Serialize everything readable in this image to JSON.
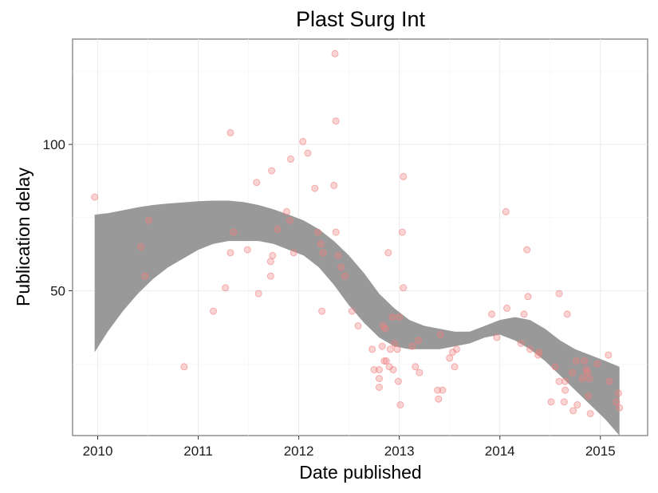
{
  "chart_data": {
    "type": "scatter",
    "title": "Plast Surg Int",
    "xlabel": "Date published",
    "ylabel": "Publication delay",
    "xlim": [
      2009.75,
      2015.47
    ],
    "ylim": [
      0.5,
      136
    ],
    "x_ticks": [
      2010,
      2011,
      2012,
      2013,
      2014,
      2015
    ],
    "y_ticks": [
      50,
      100
    ],
    "grid": true,
    "point_color": "#f08080",
    "band_color": "#999999",
    "series": [
      {
        "type": "points",
        "points": [
          [
            2009.97,
            82
          ],
          [
            2010.43,
            65
          ],
          [
            2010.47,
            55
          ],
          [
            2010.51,
            74
          ],
          [
            2010.86,
            24
          ],
          [
            2011.15,
            43
          ],
          [
            2011.27,
            51
          ],
          [
            2011.32,
            104
          ],
          [
            2011.32,
            63
          ],
          [
            2011.35,
            70
          ],
          [
            2011.49,
            64
          ],
          [
            2011.58,
            87
          ],
          [
            2011.6,
            49
          ],
          [
            2011.72,
            60
          ],
          [
            2011.72,
            55
          ],
          [
            2011.73,
            91
          ],
          [
            2011.74,
            62
          ],
          [
            2011.79,
            71
          ],
          [
            2011.88,
            77
          ],
          [
            2011.91,
            74
          ],
          [
            2011.92,
            95
          ],
          [
            2011.95,
            63
          ],
          [
            2012.04,
            101
          ],
          [
            2012.09,
            97
          ],
          [
            2012.16,
            85
          ],
          [
            2012.19,
            70
          ],
          [
            2012.22,
            66
          ],
          [
            2012.23,
            43
          ],
          [
            2012.24,
            63
          ],
          [
            2012.35,
            86
          ],
          [
            2012.36,
            131
          ],
          [
            2012.37,
            70
          ],
          [
            2012.37,
            108
          ],
          [
            2012.39,
            62
          ],
          [
            2012.42,
            58
          ],
          [
            2012.46,
            55
          ],
          [
            2012.53,
            43
          ],
          [
            2012.59,
            38
          ],
          [
            2012.73,
            30
          ],
          [
            2012.75,
            23
          ],
          [
            2012.8,
            20
          ],
          [
            2012.8,
            23
          ],
          [
            2012.8,
            17
          ],
          [
            2012.83,
            31
          ],
          [
            2012.84,
            38
          ],
          [
            2012.85,
            26
          ],
          [
            2012.86,
            37
          ],
          [
            2012.87,
            26
          ],
          [
            2012.89,
            63
          ],
          [
            2012.9,
            24
          ],
          [
            2012.91,
            30
          ],
          [
            2012.93,
            41
          ],
          [
            2012.94,
            23
          ],
          [
            2012.95,
            32
          ],
          [
            2012.98,
            30
          ],
          [
            2012.99,
            19
          ],
          [
            2013.0,
            41
          ],
          [
            2013.01,
            11
          ],
          [
            2013.03,
            70
          ],
          [
            2013.04,
            51
          ],
          [
            2013.04,
            89
          ],
          [
            2013.13,
            31
          ],
          [
            2013.16,
            24
          ],
          [
            2013.19,
            33
          ],
          [
            2013.2,
            22
          ],
          [
            2013.38,
            16
          ],
          [
            2013.39,
            13
          ],
          [
            2013.41,
            35
          ],
          [
            2013.43,
            16
          ],
          [
            2013.5,
            27
          ],
          [
            2013.53,
            29
          ],
          [
            2013.55,
            24
          ],
          [
            2013.57,
            30
          ],
          [
            2013.92,
            42
          ],
          [
            2013.97,
            34
          ],
          [
            2014.06,
            77
          ],
          [
            2014.07,
            44
          ],
          [
            2014.21,
            32
          ],
          [
            2014.24,
            42
          ],
          [
            2014.27,
            64
          ],
          [
            2014.28,
            48
          ],
          [
            2014.3,
            30
          ],
          [
            2014.38,
            28
          ],
          [
            2014.39,
            29
          ],
          [
            2014.51,
            12
          ],
          [
            2014.55,
            24
          ],
          [
            2014.59,
            19
          ],
          [
            2014.59,
            49
          ],
          [
            2014.64,
            12
          ],
          [
            2014.65,
            19
          ],
          [
            2014.65,
            16
          ],
          [
            2014.67,
            42
          ],
          [
            2014.72,
            22
          ],
          [
            2014.73,
            9
          ],
          [
            2014.76,
            26
          ],
          [
            2014.77,
            11
          ],
          [
            2014.82,
            20
          ],
          [
            2014.84,
            26
          ],
          [
            2014.86,
            23
          ],
          [
            2014.87,
            22
          ],
          [
            2014.88,
            14
          ],
          [
            2014.89,
            20
          ],
          [
            2014.9,
            8
          ],
          [
            2014.97,
            25
          ],
          [
            2015.08,
            28
          ],
          [
            2015.09,
            19
          ],
          [
            2015.16,
            12
          ],
          [
            2015.18,
            15
          ],
          [
            2015.19,
            10
          ]
        ]
      },
      {
        "type": "ribbon",
        "x": [
          2009.97,
          2010.1,
          2010.25,
          2010.4,
          2010.55,
          2010.7,
          2010.85,
          2011.0,
          2011.15,
          2011.3,
          2011.45,
          2011.6,
          2011.75,
          2011.9,
          2012.05,
          2012.2,
          2012.35,
          2012.5,
          2012.65,
          2012.8,
          2012.95,
          2013.1,
          2013.25,
          2013.4,
          2013.55,
          2013.7,
          2013.85,
          2014.0,
          2014.15,
          2014.3,
          2014.45,
          2014.6,
          2014.75,
          2014.9,
          2015.05,
          2015.19
        ],
        "lower": [
          29,
          36,
          43,
          49,
          54,
          58,
          61,
          64,
          66,
          67,
          67,
          67,
          66,
          64,
          62,
          58,
          52,
          45,
          39,
          34,
          31,
          30,
          30,
          30,
          31,
          32,
          34,
          35,
          33,
          30,
          26,
          21,
          16,
          11,
          6,
          0.5
        ],
        "upper": [
          76,
          76.5,
          77.5,
          78.5,
          79.3,
          79.8,
          80.2,
          80.6,
          80.8,
          80.8,
          80.3,
          79.3,
          77.8,
          76,
          74,
          71,
          67,
          62,
          56,
          49,
          44,
          40,
          38,
          37,
          36,
          36,
          38,
          40,
          41,
          40,
          37,
          33,
          30,
          28,
          26,
          24
        ]
      }
    ]
  }
}
